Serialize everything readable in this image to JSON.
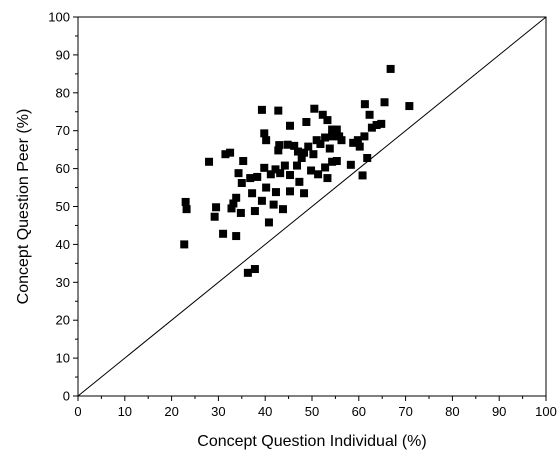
{
  "chart_data": {
    "type": "scatter",
    "title": "",
    "xlabel": "Concept Question Individual (%)",
    "ylabel": "Concept Question Peer (%)",
    "xlim": [
      0,
      100
    ],
    "ylim": [
      0,
      100
    ],
    "x_ticks": [
      0,
      10,
      20,
      30,
      40,
      50,
      60,
      70,
      80,
      90,
      100
    ],
    "y_ticks": [
      0,
      10,
      20,
      30,
      40,
      50,
      60,
      70,
      80,
      90,
      100
    ],
    "grid": false,
    "legend": "none",
    "marker": "square",
    "marker_color": "#000000",
    "reference_line": {
      "label": "",
      "x": [
        0,
        100
      ],
      "y": [
        0,
        100
      ]
    },
    "points": [
      [
        22.7,
        40.0
      ],
      [
        23.0,
        51.2
      ],
      [
        23.2,
        49.3
      ],
      [
        28.0,
        61.8
      ],
      [
        29.2,
        47.3
      ],
      [
        29.5,
        49.8
      ],
      [
        31.0,
        42.8
      ],
      [
        31.5,
        63.8
      ],
      [
        32.5,
        64.2
      ],
      [
        32.8,
        49.5
      ],
      [
        33.2,
        50.8
      ],
      [
        33.8,
        52.3
      ],
      [
        33.8,
        42.2
      ],
      [
        34.3,
        58.8
      ],
      [
        34.8,
        48.3
      ],
      [
        35.0,
        56.2
      ],
      [
        35.3,
        62.0
      ],
      [
        36.3,
        32.5
      ],
      [
        36.8,
        57.5
      ],
      [
        37.2,
        53.5
      ],
      [
        37.8,
        48.8
      ],
      [
        37.8,
        33.5
      ],
      [
        38.3,
        57.8
      ],
      [
        39.3,
        75.5
      ],
      [
        39.3,
        51.5
      ],
      [
        39.8,
        69.3
      ],
      [
        39.8,
        60.2
      ],
      [
        40.2,
        55.0
      ],
      [
        40.2,
        67.5
      ],
      [
        40.8,
        45.8
      ],
      [
        41.2,
        58.5
      ],
      [
        41.8,
        50.5
      ],
      [
        42.2,
        59.8
      ],
      [
        42.3,
        53.8
      ],
      [
        42.8,
        64.8
      ],
      [
        42.8,
        75.3
      ],
      [
        43.0,
        66.2
      ],
      [
        43.2,
        58.8
      ],
      [
        43.8,
        49.3
      ],
      [
        44.2,
        60.8
      ],
      [
        44.8,
        66.3
      ],
      [
        45.3,
        58.3
      ],
      [
        45.3,
        71.3
      ],
      [
        45.3,
        54.0
      ],
      [
        46.2,
        66.0
      ],
      [
        46.8,
        60.8
      ],
      [
        47.0,
        64.5
      ],
      [
        47.3,
        56.5
      ],
      [
        47.8,
        62.8
      ],
      [
        48.3,
        64.2
      ],
      [
        48.3,
        53.5
      ],
      [
        48.8,
        72.3
      ],
      [
        49.2,
        65.8
      ],
      [
        49.8,
        59.5
      ],
      [
        50.3,
        63.8
      ],
      [
        50.5,
        75.8
      ],
      [
        51.0,
        67.5
      ],
      [
        51.3,
        58.5
      ],
      [
        51.8,
        66.5
      ],
      [
        52.3,
        74.2
      ],
      [
        52.8,
        60.3
      ],
      [
        52.8,
        68.2
      ],
      [
        53.3,
        72.8
      ],
      [
        53.3,
        57.5
      ],
      [
        53.8,
        65.3
      ],
      [
        54.3,
        70.3
      ],
      [
        54.3,
        68.5
      ],
      [
        54.3,
        61.8
      ],
      [
        55.3,
        70.3
      ],
      [
        55.3,
        62.0
      ],
      [
        55.8,
        68.5
      ],
      [
        56.3,
        67.5
      ],
      [
        58.3,
        61.0
      ],
      [
        58.8,
        66.8
      ],
      [
        59.8,
        67.5
      ],
      [
        60.2,
        65.8
      ],
      [
        60.8,
        58.2
      ],
      [
        61.2,
        68.5
      ],
      [
        61.3,
        77.0
      ],
      [
        61.8,
        62.8
      ],
      [
        62.3,
        74.2
      ],
      [
        62.8,
        70.8
      ],
      [
        63.8,
        71.5
      ],
      [
        64.8,
        71.8
      ],
      [
        65.5,
        77.5
      ],
      [
        66.8,
        86.3
      ],
      [
        70.8,
        76.5
      ]
    ]
  }
}
